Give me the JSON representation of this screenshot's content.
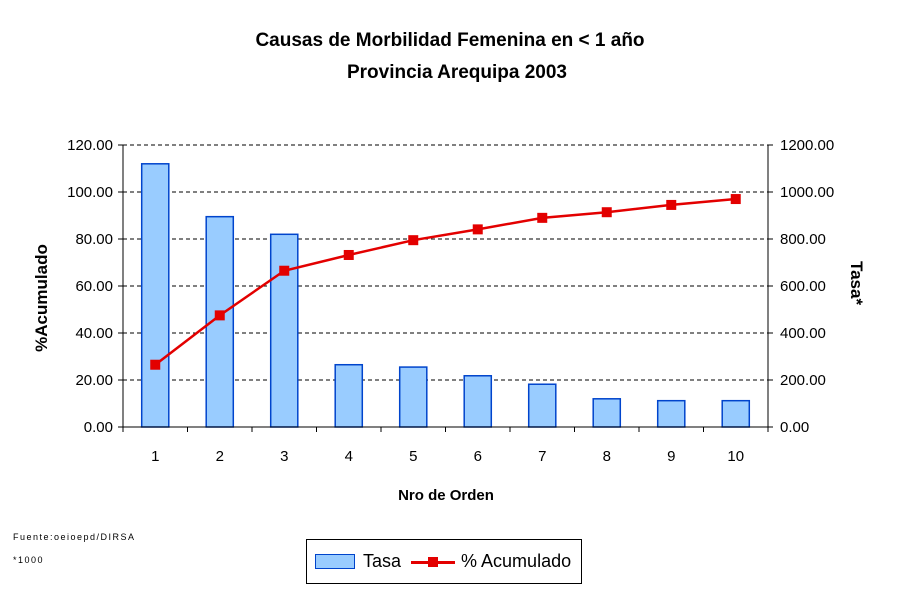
{
  "chart_data": {
    "type": "bar",
    "title": "Causas de Morbilidad Femenina en < 1 año",
    "subtitle": "Provincia Arequipa 2003",
    "xlabel": "Nro de Orden",
    "ylabel_left": "%Acumulado",
    "ylabel_right": "Tasa*",
    "categories": [
      "1",
      "2",
      "3",
      "4",
      "5",
      "6",
      "7",
      "8",
      "9",
      "10"
    ],
    "ylim_left": [
      0,
      120
    ],
    "ylim_right": [
      0,
      1200
    ],
    "yticks_left": [
      "0.00",
      "20.00",
      "40.00",
      "60.00",
      "80.00",
      "100.00",
      "120.00"
    ],
    "yticks_right": [
      "0.00",
      "200.00",
      "400.00",
      "600.00",
      "800.00",
      "1000.00",
      "1200.00"
    ],
    "grid": "horizontal dashed",
    "legend_position": "bottom",
    "series": [
      {
        "name": "Tasa",
        "type": "bar",
        "axis": "right",
        "color": "#99ccff",
        "edge_color": "#0044cc",
        "values": [
          1120,
          895,
          820,
          265,
          255,
          218,
          182,
          120,
          112,
          112
        ]
      },
      {
        "name": "% Acumulado",
        "type": "line",
        "axis": "left",
        "color": "#e30000",
        "values": [
          26.5,
          47.5,
          66.5,
          73.2,
          79.5,
          84.1,
          89.0,
          91.4,
          94.5,
          97.0
        ]
      }
    ]
  },
  "footer": {
    "source": "Fuente:oeioepd/DIRSA",
    "note": "*1000"
  }
}
